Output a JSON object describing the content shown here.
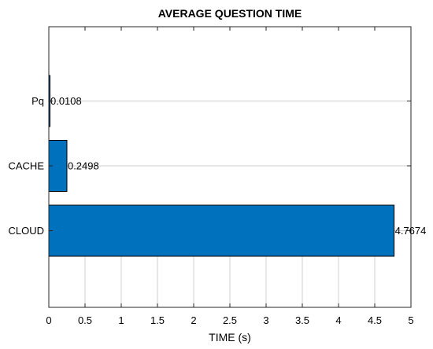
{
  "chart_data": {
    "type": "bar",
    "orientation": "horizontal",
    "title": "AVERAGE QUESTION TIME",
    "xlabel": "TIME (s)",
    "ylabel": "",
    "categories": [
      "CLOUD",
      "CACHE",
      "Pq"
    ],
    "values": [
      4.7674,
      0.2498,
      0.0108
    ],
    "data_labels": [
      "4.7674",
      "0.2498",
      "0.0108"
    ],
    "xlim": [
      0,
      5
    ],
    "x_ticks": [
      0,
      0.5,
      1,
      1.5,
      2,
      2.5,
      3,
      3.5,
      4,
      4.5,
      5
    ],
    "x_tick_labels": [
      "0",
      "0.5",
      "1",
      "1.5",
      "2",
      "2.5",
      "3",
      "3.5",
      "4",
      "4.5",
      "5"
    ],
    "grid": "partial",
    "bar_color": "#0072BD",
    "bar_edge_color": "#000000",
    "grid_color": "#CFCFCF"
  }
}
